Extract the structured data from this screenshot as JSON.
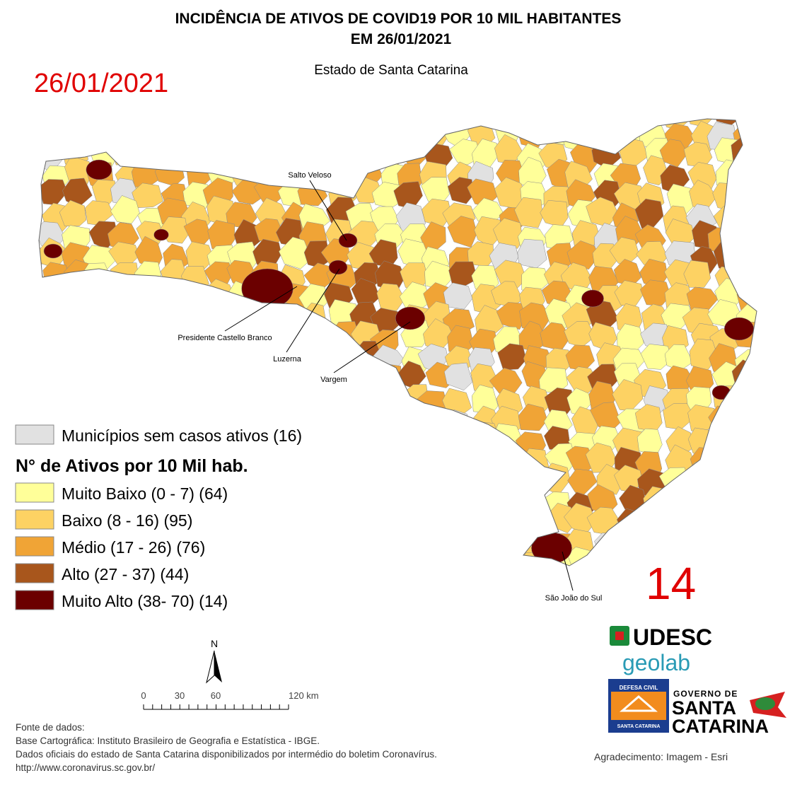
{
  "header": {
    "title_line1": "INCIDÊNCIA DE ATIVOS DE COVID19 POR 10 MIL HABITANTES",
    "title_line2": "EM 26/01/2021",
    "subtitle": "Estado de Santa Catarina",
    "date": "26/01/2021"
  },
  "counter": "14",
  "annotations": [
    "Salto Veloso",
    "Presidente Castello Branco",
    "Luzerna",
    "Vargem",
    "São João do Sul"
  ],
  "legend": {
    "no_cases": {
      "label": "Municípios sem casos ativos (16)",
      "color": "#e1e1e1"
    },
    "title": "N° de Ativos por 10 Mil hab.",
    "classes": [
      {
        "label": "Muito Baixo (0 - 7) (64)",
        "color": "#ffff99"
      },
      {
        "label": "Baixo (8 - 16) (95)",
        "color": "#fdd263"
      },
      {
        "label": "Médio (17 - 26) (76)",
        "color": "#f0a436"
      },
      {
        "label": "Alto (27 - 37) (44)",
        "color": "#a8561c"
      },
      {
        "label": "Muito Alto (38- 70) (14)",
        "color": "#6b0000"
      }
    ]
  },
  "scale": {
    "north": "N",
    "ticks": [
      "0",
      "30",
      "60",
      "120 km"
    ]
  },
  "source": [
    "Fonte de dados:",
    "Base Cartográfica: Instituto Brasileiro de Geografia e Estatística - IBGE.",
    "Dados oficiais do estado de Santa Catarina disponibilizados por intermédio do boletim Coronavírus.",
    "http://www.coronavirus.sc.gov.br/"
  ],
  "credits": "Agradecimento: Imagem - Esri",
  "logos": {
    "udesc": "UDESC",
    "geolab": "geolab",
    "defesa_top": "DEFESA CIVIL",
    "defesa_bottom": "SANTA CATARINA",
    "gov_line1": "GOVERNO DE",
    "gov_line2": "SANTA",
    "gov_line3": "CATARINA"
  }
}
